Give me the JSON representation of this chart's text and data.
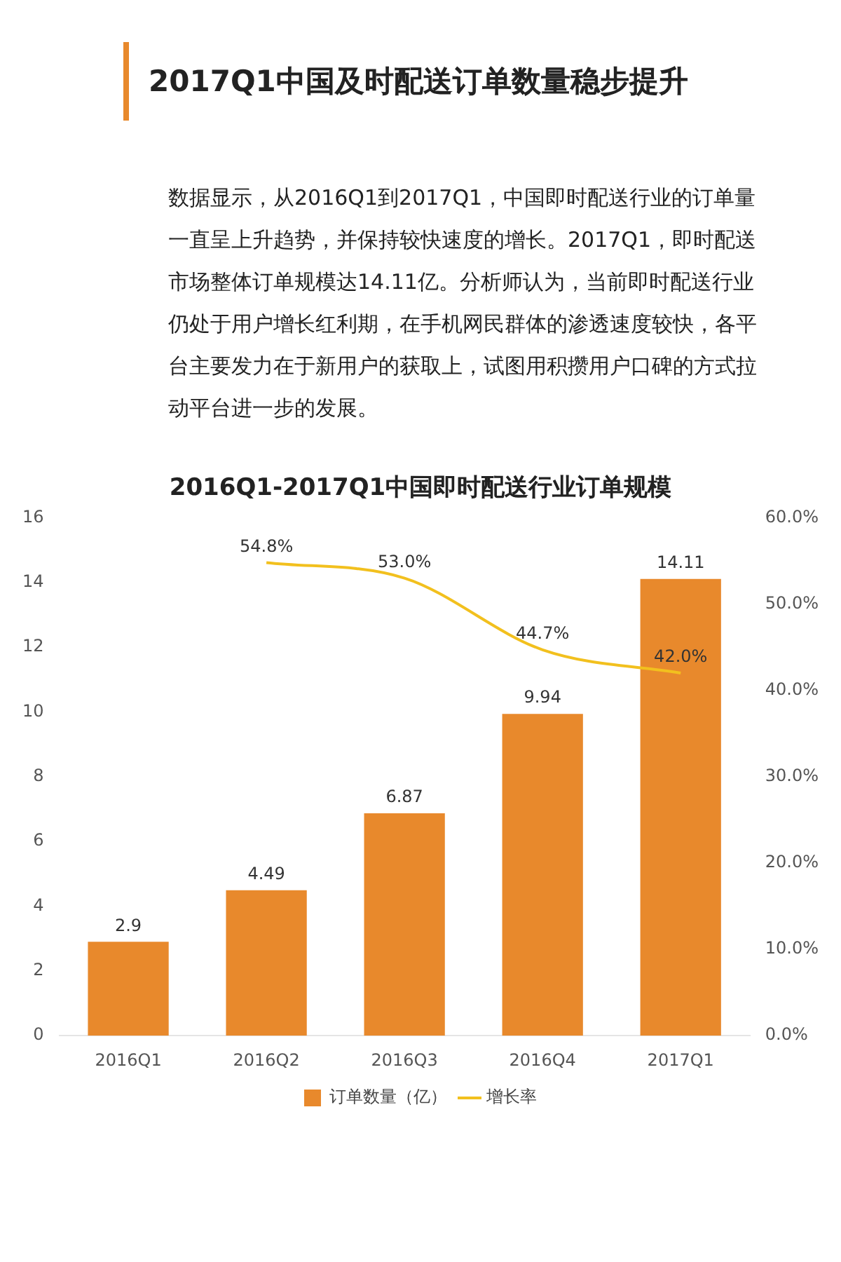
{
  "chart_data": {
    "type": "bar",
    "title": "2017Q1中国及时配送订单数量稳步提升",
    "subtitle": "2016Q1-2017Q1中国即时配送行业订单规模",
    "annotations": [
      "数据显示，从2016Q1到2017Q1，中国即时配送行业的订单量一直呈上升趋势，并保持较快速度的增长。2017Q1，即时配送市场整体订单规模达14.11亿。分析师认为，当前即时配送行业仍处于用户增长红利期，在手机网民群体的渗透速度较快，各平台主要发力在于新用户的获取上，试图用积攒用户口碑的方式拉动平台进一步的发展。"
    ],
    "categories": [
      "2016Q1",
      "2016Q2",
      "2016Q3",
      "2016Q4",
      "2017Q1"
    ],
    "series": [
      {
        "name": "订单数量（亿）",
        "color": "#e8892c",
        "values": [
          2.9,
          4.49,
          6.87,
          9.94,
          14.11
        ],
        "value_labels": [
          "2.9",
          "4.49",
          "6.87",
          "9.94",
          "14.11"
        ]
      },
      {
        "name": "增长率",
        "type": "line",
        "axis": "y2",
        "color": "#f2c01e",
        "values": [
          null,
          54.8,
          53.0,
          44.7,
          42.0
        ],
        "value_labels": [
          null,
          "54.8%",
          "53.0%",
          "44.7%",
          "42.0%"
        ]
      }
    ],
    "ylim": [
      0,
      16
    ],
    "yticks": [
      0,
      2,
      4,
      6,
      8,
      10,
      12,
      14,
      16
    ],
    "y2lim": [
      0,
      60
    ],
    "y2ticks": [
      {
        "value": 0,
        "label": "0.0%"
      },
      {
        "value": 10,
        "label": "10.0%"
      },
      {
        "value": 20,
        "label": "20.0%"
      },
      {
        "value": 30,
        "label": "30.0%"
      },
      {
        "value": 40,
        "label": "40.0%"
      },
      {
        "value": 50,
        "label": "50.0%"
      },
      {
        "value": 60,
        "label": "60.0%"
      }
    ],
    "grid": false,
    "legend": "bottom",
    "marker": "none",
    "line_style": "solid"
  }
}
